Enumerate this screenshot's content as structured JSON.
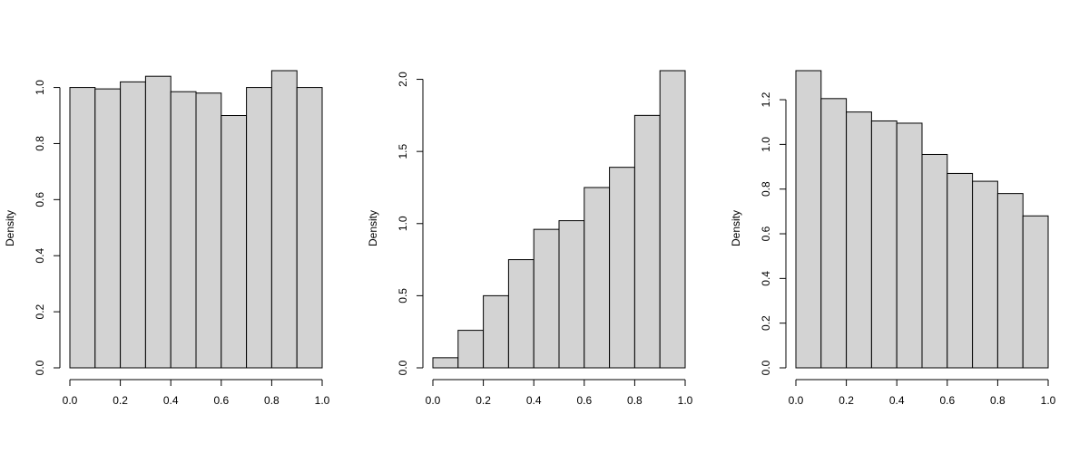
{
  "chart_data": [
    {
      "type": "bar",
      "ylabel": "Density",
      "xlim": [
        0,
        1
      ],
      "ylim": [
        0,
        1.06
      ],
      "x_ticks": [
        "0.0",
        "0.2",
        "0.4",
        "0.6",
        "0.8",
        "1.0"
      ],
      "y_ticks": [
        "0.0",
        "0.2",
        "0.4",
        "0.6",
        "0.8",
        "1.0"
      ],
      "bin_edges": [
        0.0,
        0.1,
        0.2,
        0.3,
        0.4,
        0.5,
        0.6,
        0.7,
        0.8,
        0.9,
        1.0
      ],
      "values": [
        1.0,
        0.995,
        1.02,
        1.04,
        0.985,
        0.98,
        0.9,
        1.0,
        1.06,
        1.0
      ],
      "grid": false
    },
    {
      "type": "bar",
      "ylabel": "Density",
      "xlim": [
        0,
        1
      ],
      "ylim": [
        0,
        2.06
      ],
      "x_ticks": [
        "0.0",
        "0.2",
        "0.4",
        "0.6",
        "0.8",
        "1.0"
      ],
      "y_ticks": [
        "0.0",
        "0.5",
        "1.0",
        "1.5",
        "2.0"
      ],
      "bin_edges": [
        0.0,
        0.1,
        0.2,
        0.3,
        0.4,
        0.5,
        0.6,
        0.7,
        0.8,
        0.9,
        1.0
      ],
      "values": [
        0.07,
        0.26,
        0.5,
        0.75,
        0.96,
        1.02,
        1.25,
        1.39,
        1.75,
        2.06
      ],
      "grid": false
    },
    {
      "type": "bar",
      "ylabel": "Density",
      "xlim": [
        0,
        1
      ],
      "ylim": [
        0,
        1.33
      ],
      "x_ticks": [
        "0.0",
        "0.2",
        "0.4",
        "0.6",
        "0.8",
        "1.0"
      ],
      "y_ticks": [
        "0.0",
        "0.2",
        "0.4",
        "0.6",
        "0.8",
        "1.0",
        "1.2"
      ],
      "bin_edges": [
        0.0,
        0.1,
        0.2,
        0.3,
        0.4,
        0.5,
        0.6,
        0.7,
        0.8,
        0.9,
        1.0
      ],
      "values": [
        1.33,
        1.205,
        1.145,
        1.105,
        1.095,
        0.955,
        0.87,
        0.835,
        0.78,
        0.68
      ],
      "grid": false
    }
  ]
}
